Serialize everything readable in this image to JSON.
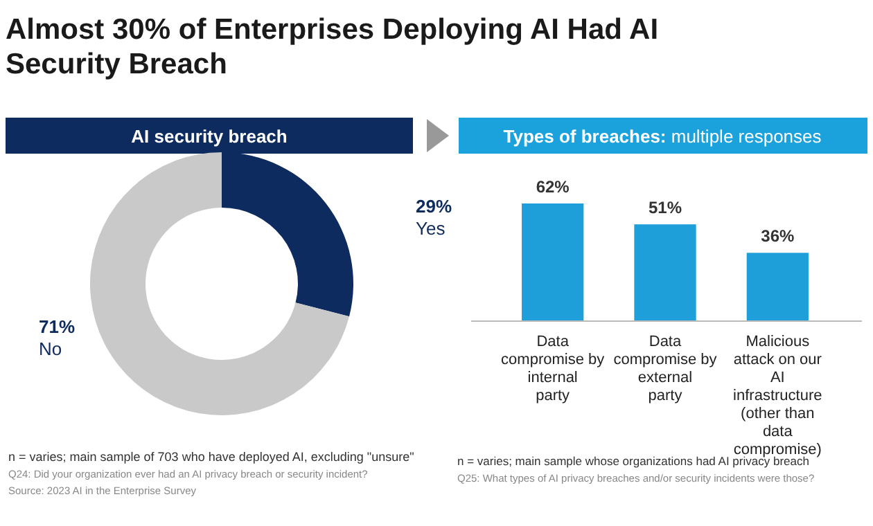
{
  "chart_data": [
    {
      "type": "donut",
      "title": "Almost 30% of Enterprises Deploying AI Had AI Security Breach",
      "subtitle": "AI security breach",
      "categories": [
        "Yes",
        "No"
      ],
      "values": [
        29,
        71
      ],
      "colors": [
        "#0d2b5e",
        "#c9c9c9"
      ],
      "value_labels": [
        "29%",
        "71%"
      ],
      "annotations": [
        "n = varies; main sample of 703 who have deployed AI, excluding \"unsure\"",
        "Q24: Did your organization ever had an AI privacy breach or security incident?",
        "Source: 2023 AI in the Enterprise Survey"
      ]
    },
    {
      "type": "bar",
      "subtitle": "Types of breaches: multiple responses",
      "categories": [
        "Data compromise by internal party",
        "Data compromise by external party",
        "Malicious attack on our AI infrastructure (other than data compromise)"
      ],
      "values": [
        62,
        51,
        36
      ],
      "color": "#1f9fd9",
      "value_labels": [
        "62%",
        "51%",
        "36%"
      ],
      "annotations": [
        "n = varies; main sample whose organizations had AI privacy breach",
        "Q25: What types of AI privacy breaches and/or security incidents were those?"
      ]
    }
  ]
}
